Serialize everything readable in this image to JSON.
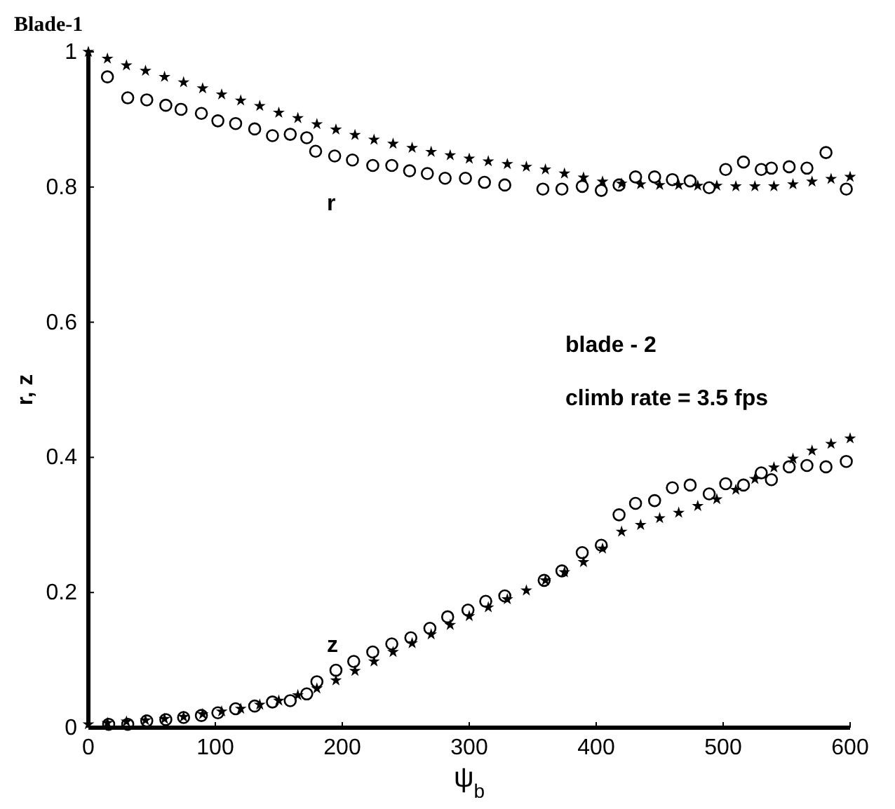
{
  "chart_data": {
    "type": "scatter",
    "title": "Blade-1",
    "xlabel": "ψ$_{b}$",
    "ylabel": "r, z",
    "xlim": [
      0,
      600
    ],
    "xticks": [
      0,
      100,
      200,
      300,
      400,
      500,
      600
    ],
    "ylim": [
      0,
      1
    ],
    "yticks": [
      0,
      0.2,
      0.4,
      0.6,
      0.8,
      1
    ],
    "grid": false,
    "annotations": [
      "r",
      "z",
      "blade - 2",
      "climb rate = 3.5 fps"
    ],
    "series": [
      {
        "color": "#000000",
        "marker": "circle",
        "x": [
          15,
          31,
          46,
          61,
          73,
          89,
          102,
          116,
          131,
          145,
          159,
          172,
          179,
          194,
          208,
          224,
          239,
          253,
          267,
          281,
          297,
          312,
          328,
          358,
          373,
          389,
          404,
          418,
          431,
          446,
          460,
          474,
          489,
          502,
          516,
          530,
          538,
          552,
          566,
          581,
          597
        ],
        "values": [
          0.963,
          0.932,
          0.929,
          0.921,
          0.915,
          0.909,
          0.898,
          0.894,
          0.886,
          0.876,
          0.878,
          0.873,
          0.853,
          0.846,
          0.84,
          0.832,
          0.832,
          0.824,
          0.82,
          0.813,
          0.813,
          0.807,
          0.803,
          0.797,
          0.797,
          0.801,
          0.795,
          0.803,
          0.815,
          0.815,
          0.811,
          0.809,
          0.799,
          0.826,
          0.837,
          0.826,
          0.828,
          0.83,
          0.828,
          0.851,
          0.797
        ]
      },
      {
        "color": "#000000",
        "marker": "star",
        "x": [
          0,
          15,
          30,
          45,
          60,
          75,
          90,
          105,
          120,
          135,
          150,
          165,
          180,
          195,
          210,
          225,
          240,
          255,
          270,
          285,
          300,
          315,
          330,
          345,
          360,
          375,
          390,
          405,
          420,
          435,
          450,
          465,
          480,
          495,
          510,
          525,
          540,
          555,
          570,
          585,
          600
        ],
        "values": [
          1.0,
          0.99,
          0.98,
          0.972,
          0.963,
          0.955,
          0.946,
          0.937,
          0.928,
          0.92,
          0.91,
          0.902,
          0.893,
          0.885,
          0.877,
          0.87,
          0.864,
          0.858,
          0.852,
          0.847,
          0.842,
          0.838,
          0.834,
          0.83,
          0.826,
          0.82,
          0.814,
          0.808,
          0.805,
          0.804,
          0.803,
          0.803,
          0.802,
          0.802,
          0.801,
          0.801,
          0.801,
          0.804,
          0.808,
          0.812,
          0.815
        ]
      },
      {
        "color": "#000000",
        "marker": "circle",
        "x": [
          16,
          31,
          46,
          61,
          75,
          89,
          102,
          116,
          131,
          145,
          159,
          172,
          180,
          195,
          209,
          224,
          239,
          254,
          269,
          283,
          299,
          313,
          328,
          359,
          373,
          389,
          404,
          418,
          431,
          446,
          460,
          474,
          489,
          502,
          516,
          530,
          538,
          552,
          566,
          581,
          597
        ],
        "values": [
          0.005,
          0.005,
          0.01,
          0.012,
          0.015,
          0.018,
          0.022,
          0.028,
          0.032,
          0.038,
          0.04,
          0.05,
          0.068,
          0.085,
          0.098,
          0.112,
          0.124,
          0.133,
          0.147,
          0.164,
          0.174,
          0.187,
          0.195,
          0.218,
          0.232,
          0.259,
          0.27,
          0.315,
          0.332,
          0.336,
          0.355,
          0.359,
          0.346,
          0.361,
          0.359,
          0.377,
          0.367,
          0.386,
          0.388,
          0.386,
          0.394
        ]
      },
      {
        "color": "#000000",
        "marker": "star",
        "x": [
          0,
          15,
          30,
          45,
          60,
          75,
          90,
          105,
          120,
          135,
          150,
          165,
          180,
          195,
          210,
          225,
          240,
          255,
          270,
          285,
          300,
          315,
          330,
          345,
          360,
          375,
          390,
          405,
          420,
          435,
          450,
          465,
          480,
          495,
          510,
          525,
          540,
          555,
          570,
          585,
          600
        ],
        "values": [
          0.005,
          0.007,
          0.009,
          0.011,
          0.013,
          0.016,
          0.02,
          0.024,
          0.028,
          0.034,
          0.04,
          0.048,
          0.058,
          0.07,
          0.084,
          0.098,
          0.112,
          0.125,
          0.138,
          0.152,
          0.165,
          0.178,
          0.19,
          0.203,
          0.218,
          0.23,
          0.245,
          0.265,
          0.29,
          0.3,
          0.31,
          0.318,
          0.328,
          0.338,
          0.352,
          0.368,
          0.385,
          0.398,
          0.41,
          0.42,
          0.428
        ]
      }
    ]
  }
}
